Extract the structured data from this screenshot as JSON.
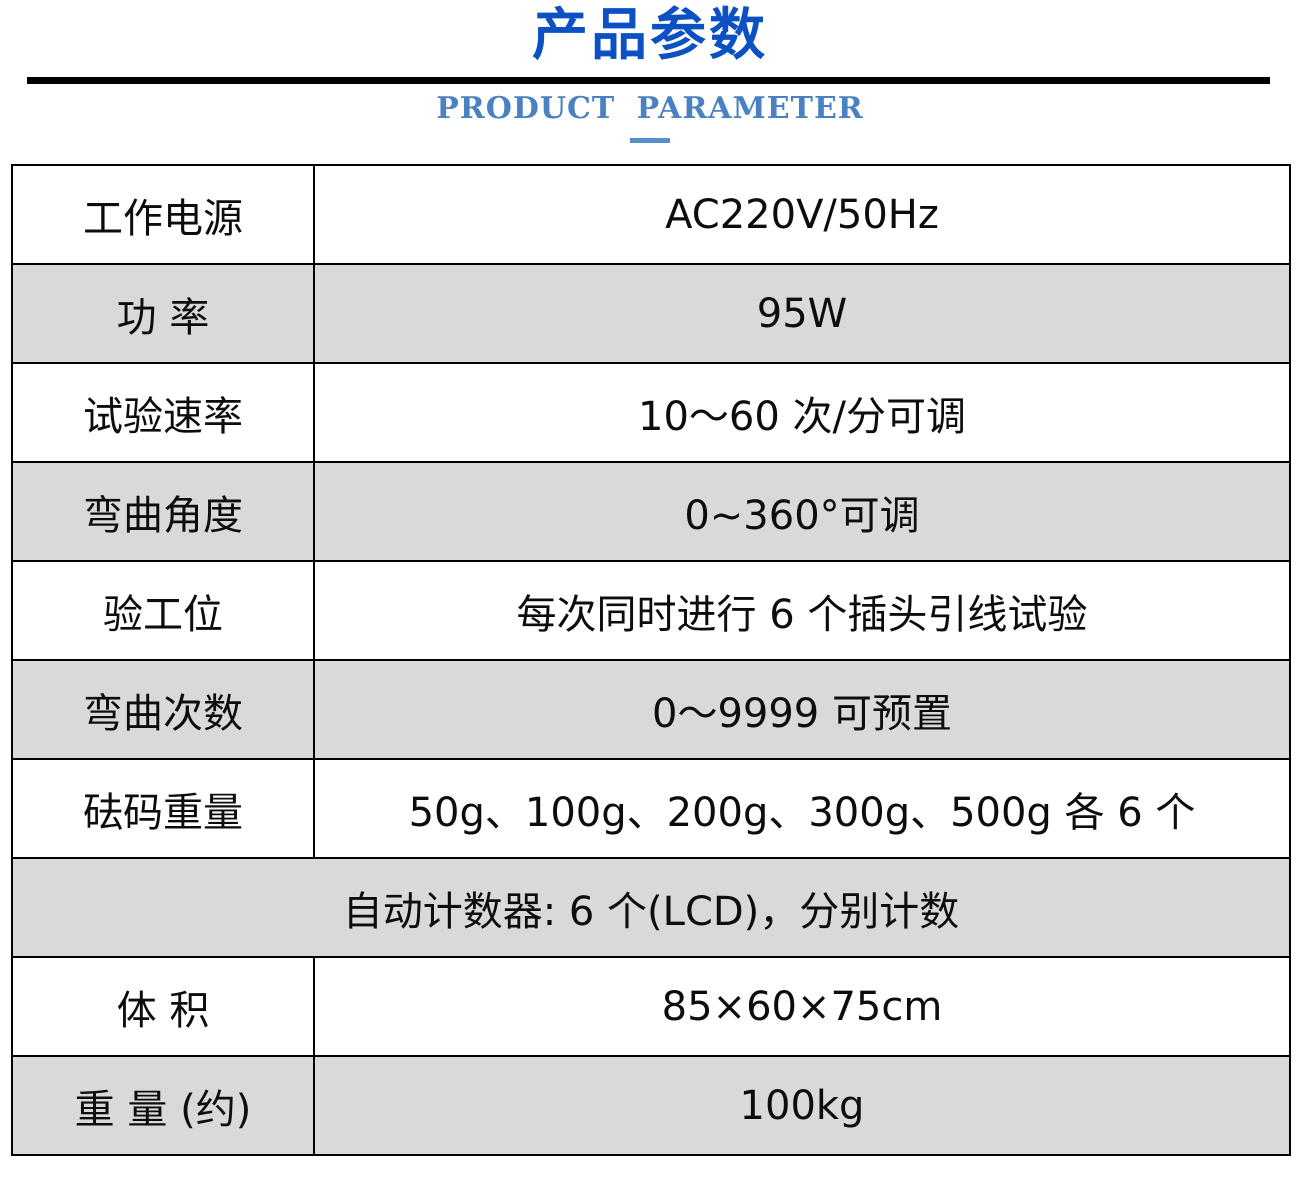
{
  "header": {
    "title": "产品参数",
    "subtitle": "PRODUCT PARAMETER"
  },
  "colors": {
    "title_blue": "#0b51c4",
    "subtitle_blue": "#4a81c2",
    "divider_black": "#000000",
    "shaded_row_gray": "#d9d9d9",
    "table_text": "#0d0d0d"
  },
  "table": {
    "rows": [
      {
        "label": "工作电源",
        "value": "AC220V/50Hz",
        "shaded": false,
        "merged": false
      },
      {
        "label": "功 率",
        "value": "95W",
        "shaded": true,
        "merged": false
      },
      {
        "label": "试验速率",
        "value": "10～60 次/分可调",
        "shaded": false,
        "merged": false
      },
      {
        "label": "弯曲角度",
        "value": "0~360°可调",
        "shaded": true,
        "merged": false
      },
      {
        "label": "验工位",
        "value": "每次同时进行 6 个插头引线试验",
        "shaded": false,
        "merged": false
      },
      {
        "label": "弯曲次数",
        "value": "0～9999 可预置",
        "shaded": true,
        "merged": false
      },
      {
        "label": "砝码重量",
        "value": "50g、100g、200g、300g、500g 各 6 个",
        "shaded": false,
        "merged": false
      },
      {
        "label": "",
        "value": "自动计数器: 6 个(LCD)，分别计数",
        "shaded": true,
        "merged": true
      },
      {
        "label": "体 积",
        "value": "85×60×75cm",
        "shaded": false,
        "merged": false
      },
      {
        "label": "重 量 (约)",
        "value": "100kg",
        "shaded": true,
        "merged": false
      }
    ]
  }
}
